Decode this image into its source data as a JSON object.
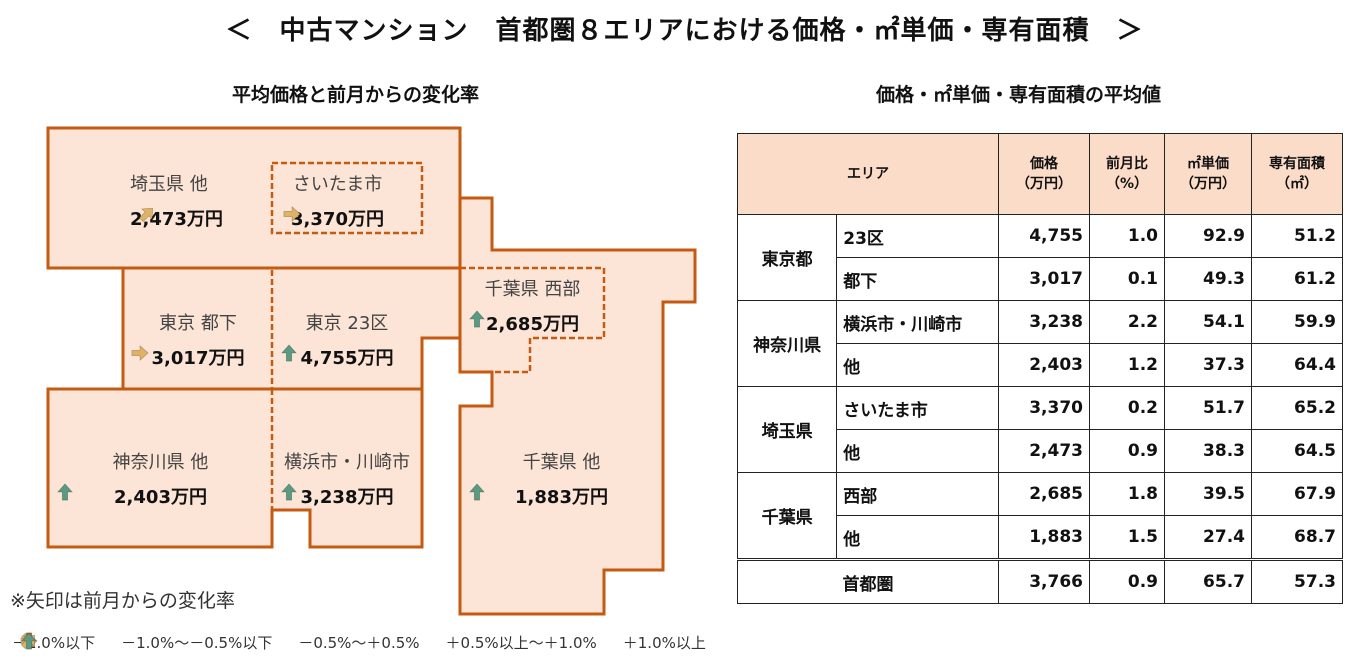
{
  "title": "＜　中古マンション　首都圏８エリアにおける価格・㎡単価・専有面積　＞",
  "map": {
    "subtitle": "平均価格と前月からの変化率",
    "regions": [
      {
        "name": "埼玉県 他",
        "price": "2,473万円",
        "arrow": "up-right"
      },
      {
        "name": "さいたま市",
        "price": "3,370万円",
        "arrow": "right"
      },
      {
        "name": "東京 都下",
        "price": "3,017万円",
        "arrow": "right"
      },
      {
        "name": "東京 23区",
        "price": "4,755万円",
        "arrow": "up"
      },
      {
        "name": "千葉県 西部",
        "price": "2,685万円",
        "arrow": "up"
      },
      {
        "name": "神奈川県 他",
        "price": "2,403万円",
        "arrow": "up"
      },
      {
        "name": "横浜市・川崎市",
        "price": "3,238万円",
        "arrow": "up"
      },
      {
        "name": "千葉県 他",
        "price": "1,883万円",
        "arrow": "up"
      }
    ],
    "note": "※矢印は前月からの変化率"
  },
  "legend": [
    {
      "arrow": "down",
      "label": "－1.0%以下",
      "color": "#d4542c"
    },
    {
      "arrow": "down-right",
      "label": "－1.0%～－0.5%以下",
      "color": "#e0b266"
    },
    {
      "arrow": "right",
      "label": "－0.5%～＋0.5%",
      "color": "#e0b266"
    },
    {
      "arrow": "up-right",
      "label": "＋0.5%以上～＋1.0%",
      "color": "#e0b266"
    },
    {
      "arrow": "up",
      "label": "＋1.0%以上",
      "color": "#5a9a80"
    }
  ],
  "table": {
    "subtitle": "価格・㎡単価・専有面積の平均値",
    "headers": [
      "エリア",
      "価格\n（万円）",
      "前月比\n（%）",
      "㎡単価\n（万円）",
      "専有面積\n（㎡）"
    ],
    "groups": [
      {
        "name": "東京都",
        "rows": [
          [
            "23区",
            "4,755",
            "1.0",
            "92.9",
            "51.2"
          ],
          [
            "都下",
            "3,017",
            "0.1",
            "49.3",
            "61.2"
          ]
        ]
      },
      {
        "name": "神奈川県",
        "rows": [
          [
            "横浜市・川崎市",
            "3,238",
            "2.2",
            "54.1",
            "59.9"
          ],
          [
            "他",
            "2,403",
            "1.2",
            "37.3",
            "64.4"
          ]
        ]
      },
      {
        "name": "埼玉県",
        "rows": [
          [
            "さいたま市",
            "3,370",
            "0.2",
            "51.7",
            "65.2"
          ],
          [
            "他",
            "2,473",
            "0.9",
            "38.3",
            "64.5"
          ]
        ]
      },
      {
        "name": "千葉県",
        "rows": [
          [
            "西部",
            "2,685",
            "1.8",
            "39.5",
            "67.9"
          ],
          [
            "他",
            "1,883",
            "1.5",
            "27.4",
            "68.7"
          ]
        ]
      }
    ],
    "total": [
      "首都圏",
      "3,766",
      "0.9",
      "65.7",
      "57.3"
    ]
  },
  "colors": {
    "fill": "#fce4d6",
    "stroke": "#c55a11",
    "up": "#5a9a80",
    "flat": "#e0b266",
    "down": "#d4542c"
  }
}
